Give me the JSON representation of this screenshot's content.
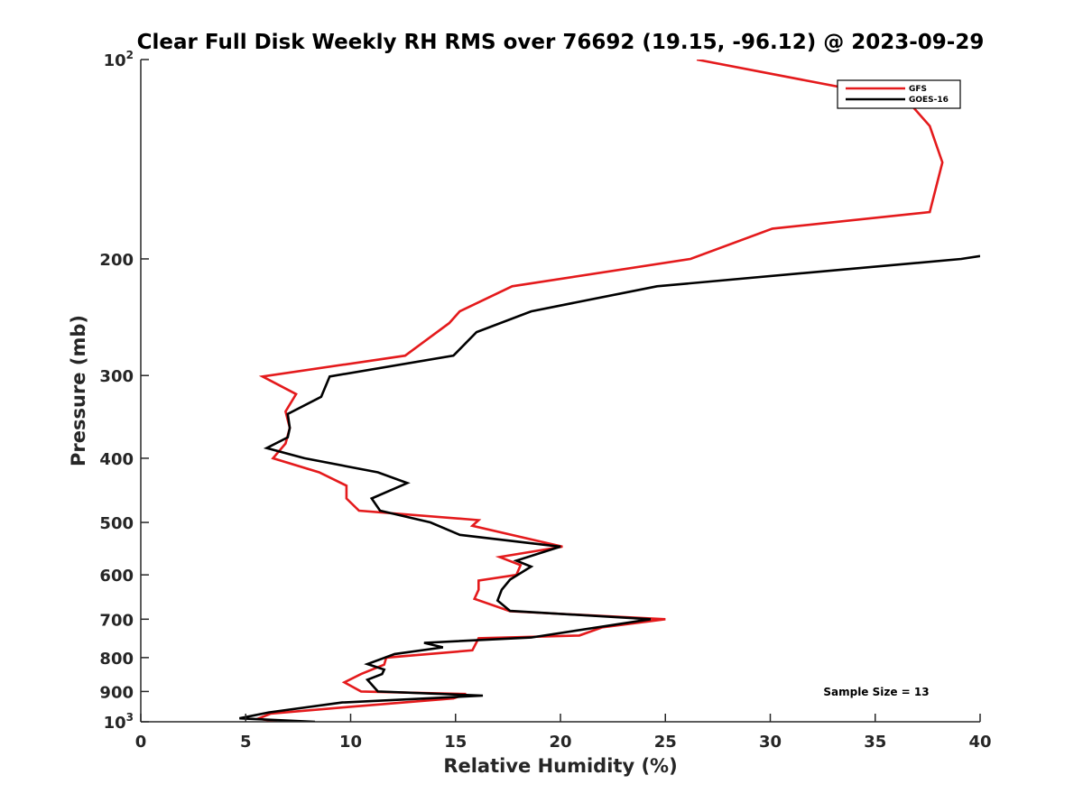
{
  "chart_data": {
    "type": "line",
    "title": "Clear Full Disk Weekly RH RMS over 76692 (19.15, -96.12) @ 2023-09-29",
    "xlabel": "Relative Humidity (%)",
    "ylabel": "Pressure (mb)",
    "xlim": [
      0,
      40
    ],
    "ylim": [
      100,
      1000
    ],
    "yscale": "log",
    "yreversed": true,
    "x_ticks": [
      "0",
      "5",
      "10",
      "15",
      "20",
      "25",
      "30",
      "35",
      "40"
    ],
    "y_ticks": [
      {
        "value": 100,
        "base": "10",
        "sup": "2"
      },
      {
        "value": 200,
        "base": "200",
        "sup": ""
      },
      {
        "value": 300,
        "base": "300",
        "sup": ""
      },
      {
        "value": 400,
        "base": "400",
        "sup": ""
      },
      {
        "value": 500,
        "base": "500",
        "sup": ""
      },
      {
        "value": 600,
        "base": "600",
        "sup": ""
      },
      {
        "value": 700,
        "base": "700",
        "sup": ""
      },
      {
        "value": 800,
        "base": "800",
        "sup": ""
      },
      {
        "value": 900,
        "base": "900",
        "sup": ""
      },
      {
        "value": 1000,
        "base": "10",
        "sup": "3"
      }
    ],
    "legend_position": "top-right",
    "series": [
      {
        "name": "GFS",
        "color": "#e41a1c",
        "points": [
          [
            26.5,
            100
          ],
          [
            36.5,
            115
          ],
          [
            37.6,
            126
          ],
          [
            38.2,
            143
          ],
          [
            37.6,
            170
          ],
          [
            30.1,
            180
          ],
          [
            26.2,
            200
          ],
          [
            17.7,
            220
          ],
          [
            15.2,
            240
          ],
          [
            14.7,
            250
          ],
          [
            12.6,
            280
          ],
          [
            5.8,
            301
          ],
          [
            7.4,
            320
          ],
          [
            6.9,
            340
          ],
          [
            7.1,
            360
          ],
          [
            6.9,
            380
          ],
          [
            6.3,
            400
          ],
          [
            8.5,
            420
          ],
          [
            9.8,
            440
          ],
          [
            9.8,
            460
          ],
          [
            10.4,
            480
          ],
          [
            16.1,
            496
          ],
          [
            15.8,
            506
          ],
          [
            20.1,
            544
          ],
          [
            17.1,
            564
          ],
          [
            18.1,
            580
          ],
          [
            17.9,
            600
          ],
          [
            16.1,
            612
          ],
          [
            16.1,
            632
          ],
          [
            15.9,
            652
          ],
          [
            17.6,
            681
          ],
          [
            25.0,
            700
          ],
          [
            22.0,
            720
          ],
          [
            20.9,
            741
          ],
          [
            16.1,
            748
          ],
          [
            15.8,
            780
          ],
          [
            11.7,
            800
          ],
          [
            11.6,
            820
          ],
          [
            10.5,
            847
          ],
          [
            9.7,
            872
          ],
          [
            10.5,
            900
          ],
          [
            15.5,
            908
          ],
          [
            14.9,
            922
          ],
          [
            9.9,
            950
          ],
          [
            6.2,
            972
          ],
          [
            5.6,
            989
          ],
          [
            6.5,
            1000
          ]
        ]
      },
      {
        "name": "GOES-16",
        "color": "#000000",
        "points": [
          [
            40.0,
            198
          ],
          [
            39.1,
            200
          ],
          [
            24.6,
            220
          ],
          [
            18.6,
            240
          ],
          [
            16.0,
            258
          ],
          [
            14.9,
            280
          ],
          [
            9.0,
            301
          ],
          [
            8.6,
            323
          ],
          [
            7.0,
            343
          ],
          [
            7.1,
            360
          ],
          [
            7.0,
            372
          ],
          [
            6.0,
            386
          ],
          [
            7.8,
            400
          ],
          [
            11.3,
            420
          ],
          [
            12.7,
            436
          ],
          [
            11.0,
            460
          ],
          [
            11.4,
            480
          ],
          [
            13.8,
            500
          ],
          [
            15.2,
            522
          ],
          [
            20.0,
            544
          ],
          [
            17.9,
            571
          ],
          [
            18.6,
            583
          ],
          [
            17.6,
            610
          ],
          [
            17.2,
            632
          ],
          [
            17.0,
            656
          ],
          [
            17.6,
            680
          ],
          [
            24.3,
            700
          ],
          [
            18.6,
            746
          ],
          [
            13.5,
            760
          ],
          [
            14.4,
            772
          ],
          [
            12.1,
            790
          ],
          [
            10.8,
            818
          ],
          [
            11.6,
            834
          ],
          [
            11.5,
            847
          ],
          [
            10.8,
            864
          ],
          [
            11.3,
            900
          ],
          [
            16.3,
            913
          ],
          [
            9.6,
            935
          ],
          [
            6.1,
            968
          ],
          [
            4.7,
            988
          ],
          [
            8.3,
            1000
          ]
        ]
      }
    ],
    "annotations": [
      {
        "text": "Sample Size = 13",
        "x": 33,
        "y": 900
      }
    ]
  }
}
